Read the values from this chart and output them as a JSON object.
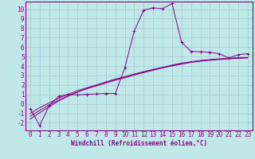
{
  "xlabel": "Windchill (Refroidissement éolien,°C)",
  "bg_color": "#c0e8e8",
  "grid_color": "#a0cccc",
  "line_color": "#880088",
  "spine_color": "#880088",
  "x_main": [
    0,
    1,
    2,
    3,
    4,
    5,
    6,
    7,
    8,
    9,
    10,
    11,
    12,
    13,
    14,
    15,
    16,
    17,
    18,
    19,
    20,
    21,
    22,
    23
  ],
  "y_line1": [
    -0.5,
    -2.3,
    -0.2,
    0.8,
    1.0,
    0.95,
    1.0,
    1.05,
    1.1,
    1.1,
    3.8,
    7.7,
    9.9,
    10.15,
    10.05,
    10.6,
    6.5,
    5.55,
    5.5,
    5.45,
    5.3,
    4.85,
    5.2,
    5.3
  ],
  "y_regr1": [
    -1.3,
    -0.7,
    -0.1,
    0.4,
    0.85,
    1.25,
    1.6,
    1.9,
    2.2,
    2.5,
    2.75,
    3.05,
    3.3,
    3.55,
    3.8,
    4.0,
    4.2,
    4.38,
    4.5,
    4.6,
    4.68,
    4.75,
    4.8,
    4.85
  ],
  "y_regr2": [
    -1.6,
    -0.95,
    -0.3,
    0.3,
    0.8,
    1.25,
    1.65,
    1.95,
    2.3,
    2.6,
    2.85,
    3.15,
    3.4,
    3.65,
    3.85,
    4.1,
    4.3,
    4.45,
    4.57,
    4.67,
    4.75,
    4.82,
    4.87,
    4.9
  ],
  "y_regr3": [
    -1.0,
    -0.4,
    0.1,
    0.6,
    1.0,
    1.4,
    1.7,
    2.0,
    2.3,
    2.6,
    2.85,
    3.1,
    3.35,
    3.6,
    3.82,
    4.05,
    4.25,
    4.42,
    4.55,
    4.65,
    4.73,
    4.8,
    4.85,
    4.88
  ],
  "ylim": [
    -2.8,
    10.8
  ],
  "xlim": [
    -0.5,
    23.5
  ],
  "yticks": [
    -2,
    -1,
    0,
    1,
    2,
    3,
    4,
    5,
    6,
    7,
    8,
    9,
    10
  ],
  "xticks": [
    0,
    1,
    2,
    3,
    4,
    5,
    6,
    7,
    8,
    9,
    10,
    11,
    12,
    13,
    14,
    15,
    16,
    17,
    18,
    19,
    20,
    21,
    22,
    23
  ],
  "tick_fontsize": 5.5,
  "xlabel_fontsize": 5.5
}
